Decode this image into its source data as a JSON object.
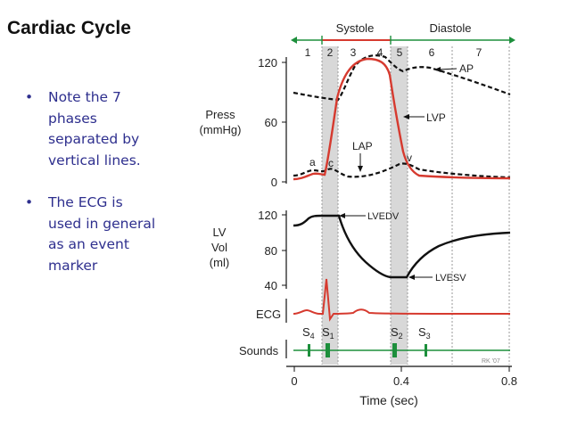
{
  "slide": {
    "title": "Cardiac Cycle"
  },
  "bullets": [
    {
      "lines": [
        "Note the 7",
        "phases",
        "separated by",
        "vertical lines."
      ]
    },
    {
      "lines": [
        "The ECG is",
        "used in general",
        "as an event",
        "marker"
      ]
    }
  ],
  "figure": {
    "phase_bar": {
      "systole": "Systole",
      "diastole": "Diastole",
      "phases": [
        "1",
        "2",
        "3",
        "4",
        "5",
        "6",
        "7"
      ]
    },
    "pressure_panel": {
      "ylabel_lines": [
        "Press",
        "(mmHg)"
      ],
      "ticks": [
        "120",
        "60",
        "0"
      ],
      "curve_labels": {
        "ap": "AP",
        "lvp": "LVP",
        "lap": "LAP",
        "a": "a",
        "c": "c",
        "v": "v"
      }
    },
    "volume_panel": {
      "ylabel_lines": [
        "LV",
        "Vol",
        "(ml)"
      ],
      "ticks": [
        "120",
        "80",
        "40"
      ],
      "curve_labels": {
        "lvedv": "LVEDV",
        "lvesv": "LVESV"
      }
    },
    "ecg_label": "ECG",
    "sounds": {
      "label": "Sounds",
      "s4": "S",
      "s4_sub": "4",
      "s1": "S",
      "s1_sub": "1",
      "s2": "S",
      "s2_sub": "2",
      "s3": "S",
      "s3_sub": "3"
    },
    "x_axis": {
      "ticks": [
        "0",
        "0.4",
        "0.8"
      ],
      "label": "Time (sec)"
    },
    "credit": "RK '07",
    "colors": {
      "red": "#d63a2f",
      "green": "#1d8f3c",
      "black": "#111111",
      "band": "#d8d8d8",
      "grid": "#9a9a9a"
    }
  }
}
